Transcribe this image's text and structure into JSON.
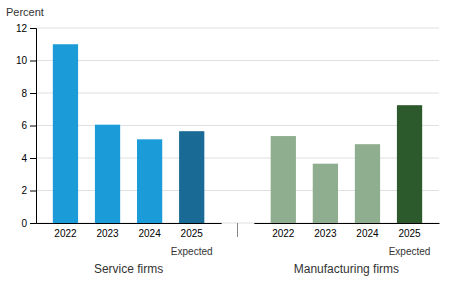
{
  "chart_data": {
    "type": "bar",
    "ylabel": "Percent",
    "categories": [
      "2022",
      "2023",
      "2024",
      "2025"
    ],
    "series": [
      {
        "name": "Service firms",
        "colors": [
          "#1b9cd8",
          "#1b9cd8",
          "#1b9cd8",
          "#1a6a96"
        ],
        "values": [
          11.0,
          6.05,
          5.15,
          5.65
        ]
      },
      {
        "name": "Manufacturing firms",
        "colors": [
          "#8fad8f",
          "#8fad8f",
          "#8fad8f",
          "#2d5a2d"
        ],
        "values": [
          5.35,
          3.65,
          4.85,
          7.25
        ]
      }
    ],
    "annotations": [
      {
        "text": "Expected",
        "series": "Service firms",
        "category": "2025"
      },
      {
        "text": "Expected",
        "series": "Manufacturing firms",
        "category": "2025"
      }
    ],
    "ylim": [
      0,
      12
    ],
    "yticks": [
      0,
      2,
      4,
      6,
      8,
      10,
      12
    ],
    "grid": true
  }
}
